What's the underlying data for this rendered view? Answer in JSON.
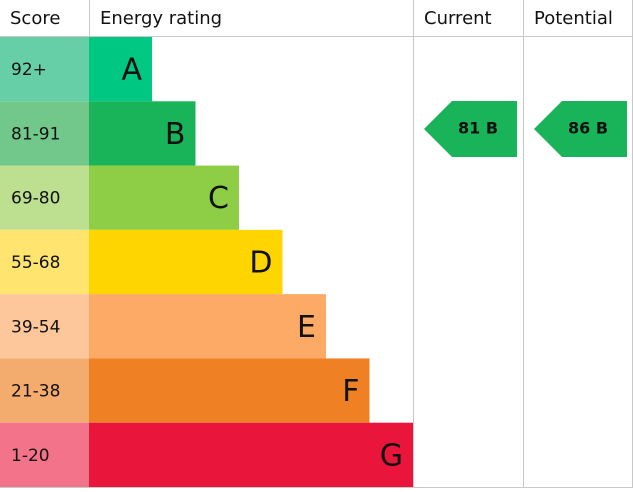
{
  "header": {
    "score": "Score",
    "rating": "Energy rating",
    "current": "Current",
    "potential": "Potential"
  },
  "bands": [
    {
      "score": "92+",
      "letter": "A",
      "color": "#00c781",
      "score_color": "#66cfa8"
    },
    {
      "score": "81-91",
      "letter": "B",
      "color": "#19b459",
      "score_color": "#72c88a"
    },
    {
      "score": "69-80",
      "letter": "C",
      "color": "#8dce46",
      "score_color": "#bce08f"
    },
    {
      "score": "55-68",
      "letter": "D",
      "color": "#ffd500",
      "score_color": "#ffe46f"
    },
    {
      "score": "39-54",
      "letter": "E",
      "color": "#fcaa65",
      "score_color": "#fdc79b"
    },
    {
      "score": "21-38",
      "letter": "F",
      "color": "#ef8023",
      "score_color": "#f4ab6e"
    },
    {
      "score": "1-20",
      "letter": "G",
      "color": "#e9153b",
      "score_color": "#f2738a"
    }
  ],
  "current": {
    "label": "81 B",
    "color": "#19b459"
  },
  "potential": {
    "label": "86 B",
    "color": "#19b459"
  }
}
